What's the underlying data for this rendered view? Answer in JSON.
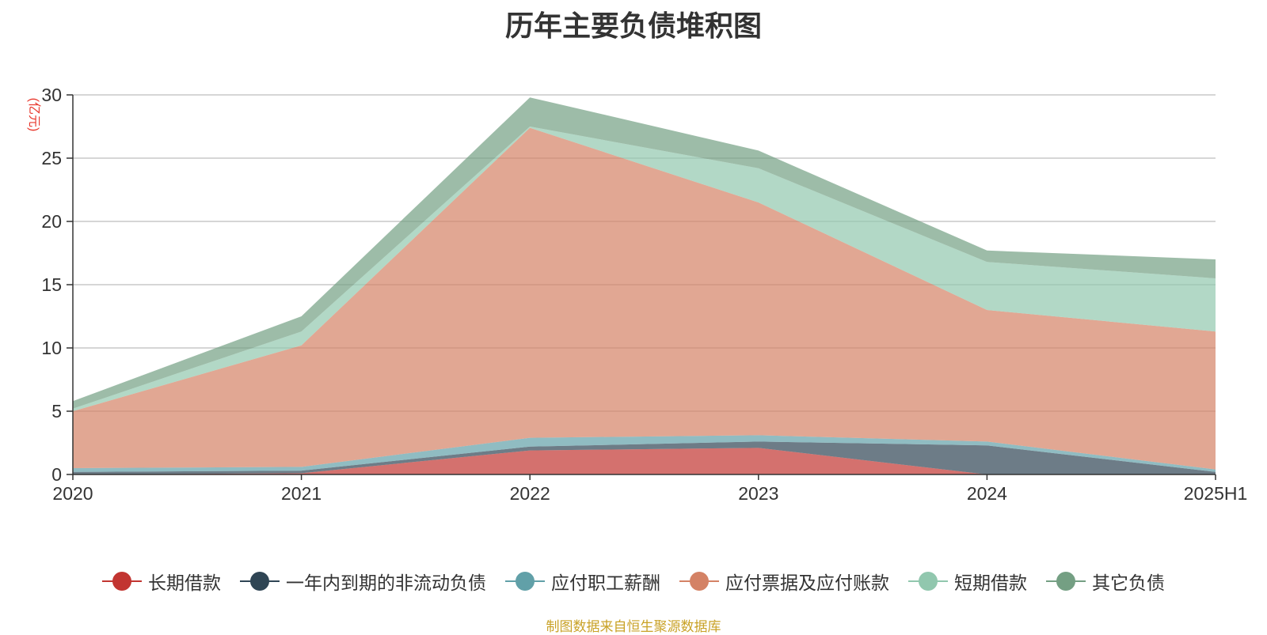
{
  "chart_data": {
    "type": "area",
    "stacked": true,
    "title": "历年主要负债堆积图",
    "ylabel": "(亿元)",
    "xlabel": "",
    "categories": [
      "2020",
      "2021",
      "2022",
      "2023",
      "2024",
      "2025H1"
    ],
    "ylim": [
      0,
      30
    ],
    "yticks": [
      0,
      5,
      10,
      15,
      20,
      25,
      30
    ],
    "grid": true,
    "legend_position": "bottom",
    "series": [
      {
        "name": "长期借款",
        "color": "#c23531",
        "values": [
          0.0,
          0.1,
          1.9,
          2.1,
          0.0,
          0.0
        ]
      },
      {
        "name": "一年内到期的非流动负债",
        "color": "#2f4554",
        "values": [
          0.2,
          0.2,
          0.3,
          0.5,
          2.3,
          0.2
        ]
      },
      {
        "name": "应付职工薪酬",
        "color": "#61a0a8",
        "values": [
          0.3,
          0.3,
          0.7,
          0.5,
          0.3,
          0.2
        ]
      },
      {
        "name": "应付票据及应付账款",
        "color": "#d48265",
        "values": [
          4.5,
          9.6,
          24.5,
          18.4,
          10.4,
          10.9
        ]
      },
      {
        "name": "短期借款",
        "color": "#91c7ae",
        "values": [
          0.2,
          1.1,
          0.1,
          2.7,
          3.8,
          4.2
        ]
      },
      {
        "name": "其它负债",
        "color": "#749f83",
        "values": [
          0.6,
          1.2,
          2.3,
          1.4,
          0.9,
          1.5
        ]
      }
    ]
  },
  "footer": {
    "source_note": "制图数据来自恒生聚源数据库"
  }
}
